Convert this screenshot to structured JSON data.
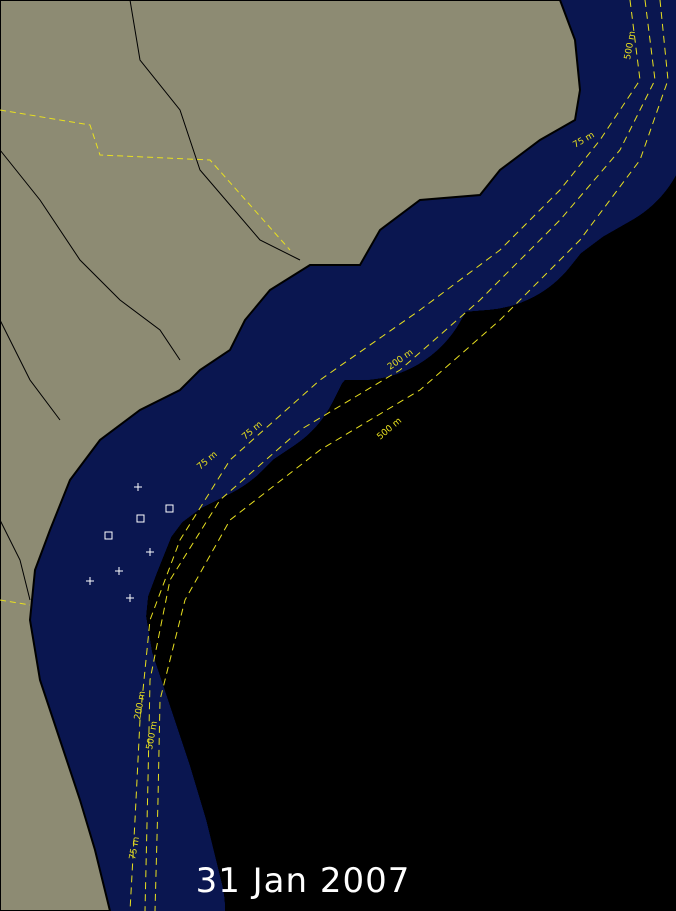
{
  "date_label": "31 Jan 2007",
  "contour_labels": [
    "75 m",
    "500 m",
    "75 m",
    "200 m",
    "500 m",
    "75 m",
    "200 m",
    "500 m",
    "75 m"
  ]
}
